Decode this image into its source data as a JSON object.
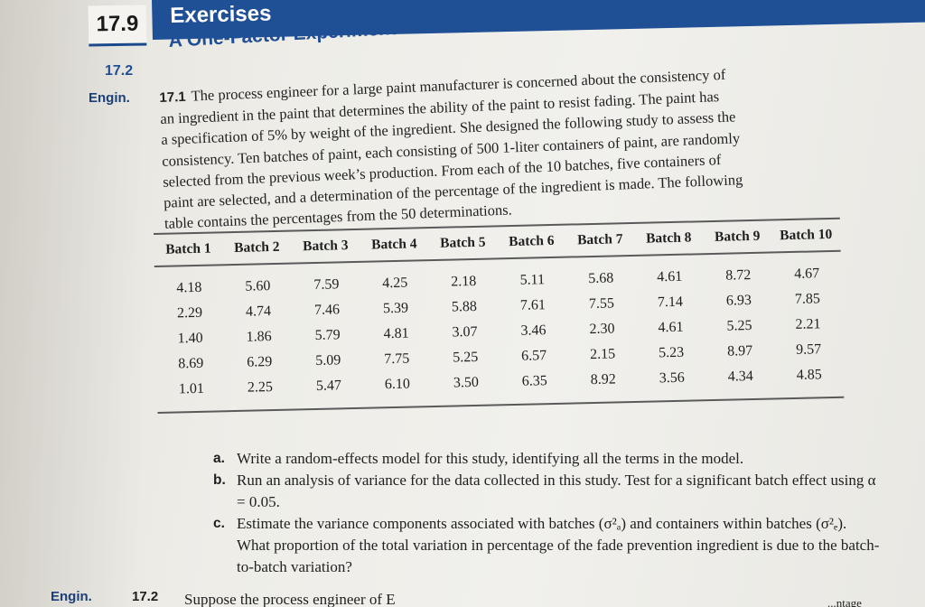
{
  "chapter": {
    "number": "17.9",
    "title": "Exercises"
  },
  "section": {
    "number": "17.2",
    "title": "A One-Factor Experiment with Random Treatment Effects"
  },
  "margin_tags": {
    "engin_top": "Engin.",
    "engin_bottom": "Engin."
  },
  "exercise": {
    "number": "17.1",
    "lines": [
      "The process engineer for a large paint manufacturer is concerned about the consistency of",
      "an ingredient in the paint that determines the ability of the paint to resist fading. The paint has",
      "a specification of 5% by weight of the ingredient. She designed the following study to assess the",
      "consistency. Ten batches of paint, each consisting of 500 1-liter containers of paint, are randomly",
      "selected from the previous week’s production. From each of the 10 batches, five containers of",
      "paint are selected, and a determination of the percentage of the ingredient is made. The following",
      "table contains the percentages from the 50 determinations."
    ]
  },
  "table": {
    "headers": [
      "Batch 1",
      "Batch 2",
      "Batch 3",
      "Batch 4",
      "Batch 5",
      "Batch 6",
      "Batch 7",
      "Batch 8",
      "Batch 9",
      "Batch 10"
    ],
    "rows": [
      [
        "4.18",
        "5.60",
        "7.59",
        "4.25",
        "2.18",
        "5.11",
        "5.68",
        "4.61",
        "8.72",
        "4.67"
      ],
      [
        "2.29",
        "4.74",
        "7.46",
        "5.39",
        "5.88",
        "7.61",
        "7.55",
        "7.14",
        "6.93",
        "7.85"
      ],
      [
        "1.40",
        "1.86",
        "5.79",
        "4.81",
        "3.07",
        "3.46",
        "2.30",
        "4.61",
        "5.25",
        "2.21"
      ],
      [
        "8.69",
        "6.29",
        "5.09",
        "7.75",
        "5.25",
        "6.57",
        "2.15",
        "5.23",
        "8.97",
        "9.57"
      ],
      [
        "1.01",
        "2.25",
        "5.47",
        "6.10",
        "3.50",
        "6.35",
        "8.92",
        "3.56",
        "4.34",
        "4.85"
      ]
    ]
  },
  "questions": [
    {
      "label": "a.",
      "text": "Write a random-effects model for this study, identifying all the terms in the model."
    },
    {
      "label": "b.",
      "text": "Run an analysis of variance for the data collected in this study. Test for a significant batch effect using α = 0.05."
    },
    {
      "label": "c.",
      "text": "Estimate the variance components associated with batches (σ²ₐ) and containers within batches (σ²ₑ). What proportion of the total variation in percentage of the fade prevention ingredient is due to the batch-to-batch variation?"
    }
  ],
  "footer": {
    "number": "17.2",
    "text": "Suppose the process engineer of E",
    "right": "...ntage"
  }
}
